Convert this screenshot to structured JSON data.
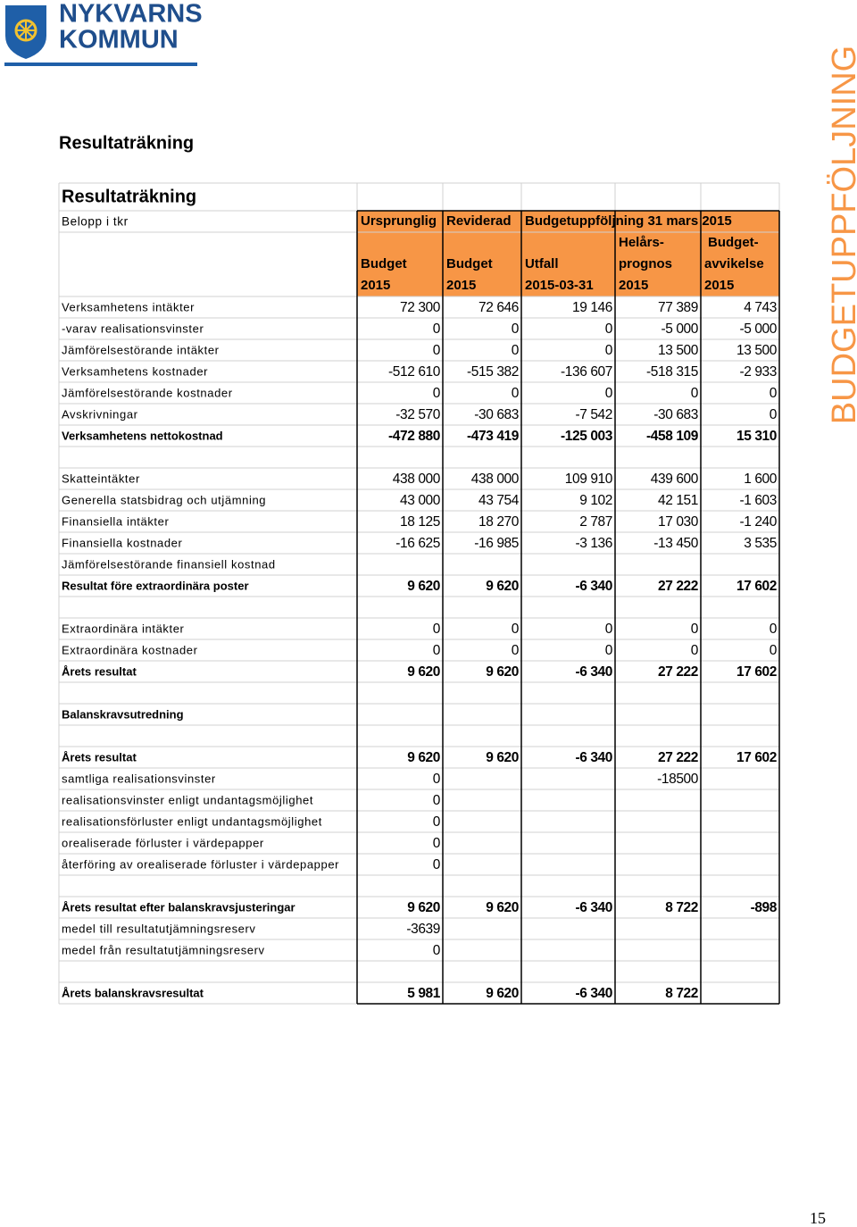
{
  "logo": {
    "line1": "NYKVARNS",
    "line2": "KOMMUN"
  },
  "heading": "Resultaträkning",
  "side_title": "BUDGETUPPFÖLJNING",
  "page_number": "15",
  "table": {
    "title": "Resultaträkning",
    "unit": "Belopp i tkr",
    "header_top": [
      "Ursprunglig",
      "Reviderad",
      "Budgetuppföljning 31 mars 2015"
    ],
    "header_columns": [
      [
        "Budget",
        "2015"
      ],
      [
        "Budget",
        "2015"
      ],
      [
        "Utfall",
        "2015-03-31"
      ],
      [
        "Helårs-",
        "prognos",
        "2015"
      ],
      [
        "Budget-",
        "avvikelse",
        "2015"
      ]
    ],
    "sections": [
      {
        "rows": [
          {
            "label": "Verksamhetens intäkter",
            "values": [
              "72 300",
              "72 646",
              "19 146",
              "77 389",
              "4 743"
            ]
          },
          {
            "label": "-varav realisationsvinster",
            "values": [
              "0",
              "0",
              "0",
              "-5 000",
              "-5 000"
            ]
          },
          {
            "label": "Jämförelsestörande intäkter",
            "values": [
              "0",
              "0",
              "0",
              "13 500",
              "13 500"
            ]
          },
          {
            "label": "Verksamhetens kostnader",
            "values": [
              "-512 610",
              "-515 382",
              "-136 607",
              "-518 315",
              "-2 933"
            ]
          },
          {
            "label": "Jämförelsestörande kostnader",
            "values": [
              "0",
              "0",
              "0",
              "0",
              "0"
            ]
          },
          {
            "label": "Avskrivningar",
            "values": [
              "-32 570",
              "-30 683",
              "-7 542",
              "-30 683",
              "0"
            ]
          },
          {
            "label": "Verksamhetens nettokostnad",
            "values": [
              "-472 880",
              "-473 419",
              "-125 003",
              "-458 109",
              "15 310"
            ],
            "bold": true
          }
        ]
      },
      {
        "rows": [
          {
            "label": "Skatteintäkter",
            "values": [
              "438 000",
              "438 000",
              "109 910",
              "439 600",
              "1 600"
            ]
          },
          {
            "label": "Generella statsbidrag och utjämning",
            "values": [
              "43 000",
              "43 754",
              "9 102",
              "42 151",
              "-1 603"
            ]
          },
          {
            "label": "Finansiella intäkter",
            "values": [
              "18 125",
              "18 270",
              "2 787",
              "17 030",
              "-1 240"
            ]
          },
          {
            "label": "Finansiella kostnader",
            "values": [
              "-16 625",
              "-16 985",
              "-3 136",
              "-13 450",
              "3 535"
            ]
          },
          {
            "label": "Jämförelsestörande finansiell kostnad"
          },
          {
            "label": "Resultat före extraordinära poster",
            "values": [
              "9 620",
              "9 620",
              "-6 340",
              "27 222",
              "17 602"
            ],
            "bold": true
          }
        ]
      },
      {
        "rows": [
          {
            "label": "Extraordinära intäkter",
            "values": [
              "0",
              "0",
              "0",
              "0",
              "0"
            ]
          },
          {
            "label": "Extraordinära kostnader",
            "values": [
              "0",
              "0",
              "0",
              "0",
              "0"
            ]
          },
          {
            "label": "Årets resultat",
            "values": [
              "9 620",
              "9 620",
              "-6 340",
              "27 222",
              "17 602"
            ],
            "bold": true
          }
        ]
      },
      {
        "rows": [
          {
            "label": "Balanskravsutredning",
            "bold": true
          }
        ]
      },
      {
        "rows": [
          {
            "label": "Årets resultat",
            "values": [
              "9 620",
              "9 620",
              "-6 340",
              "27 222",
              "17 602"
            ],
            "bold": true
          },
          {
            "label": "samtliga realisationsvinster",
            "values": [
              "0",
              null,
              null,
              "-18500",
              null
            ]
          },
          {
            "label": "realisationsvinster enligt undantagsmöjlighet",
            "values": [
              "0",
              null,
              null,
              null,
              null
            ]
          },
          {
            "label": "realisationsförluster enligt undantagsmöjlighet",
            "values": [
              "0",
              null,
              null,
              null,
              null
            ]
          },
          {
            "label": "orealiserade förluster i värdepapper",
            "values": [
              "0",
              null,
              null,
              null,
              null
            ]
          },
          {
            "label": "återföring av orealiserade förluster i värdepapper",
            "values": [
              "0",
              null,
              null,
              null,
              null
            ]
          }
        ]
      },
      {
        "rows": [
          {
            "label": "Årets resultat efter balanskravsjusteringar",
            "values": [
              "9 620",
              "9 620",
              "-6 340",
              "8 722",
              "-898"
            ],
            "bold": true
          },
          {
            "label": "medel till resultatutjämningsreserv",
            "values": [
              "-3639",
              null,
              null,
              null,
              null
            ]
          },
          {
            "label": "medel från resultatutjämningsreserv",
            "values": [
              "0",
              null,
              null,
              null,
              null
            ]
          }
        ]
      },
      {
        "rows": [
          {
            "label": "Årets balanskravsresultat",
            "values": [
              "5 981",
              "9 620",
              "-6 340",
              "8 722",
              null
            ],
            "bold": true
          }
        ]
      }
    ]
  }
}
